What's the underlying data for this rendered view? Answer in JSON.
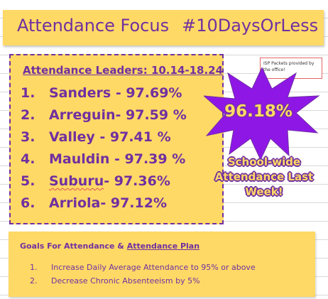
{
  "title": {
    "left": "Attendance Focus",
    "right": "#10DaysOrLess"
  },
  "leaders": {
    "heading": "Attendance Leaders: 10.14-18.24",
    "items": [
      {
        "num": "1.",
        "text": "Sanders - 97.69%"
      },
      {
        "num": "2.",
        "text": "Arreguin- 97.59 %"
      },
      {
        "num": "3.",
        "text": "Valley - 97.41 %"
      },
      {
        "num": "4.",
        "text": "Mauldin - 97.39 %"
      },
      {
        "num": "5.",
        "text_name": "Suburu",
        "text_rest": "- 97.36%"
      },
      {
        "num": "6.",
        "text": "Arriola- 97.12%"
      }
    ]
  },
  "note": {
    "text": "ISP Packets provided by the office!"
  },
  "school_wide": {
    "rate": "96.18%",
    "line1": "School-wide",
    "line2": "Attendance Last",
    "line3": "Week!"
  },
  "goals": {
    "heading_prefix": "Goals For Attendance & ",
    "heading_link": "Attendance Plan",
    "items": [
      {
        "num": "1.",
        "text": "Increase Daily Average Attendance to 95% or above"
      },
      {
        "num": "2.",
        "text": "Decrease Chronic Absenteeism by 5%"
      }
    ]
  },
  "colors": {
    "panel": "#ffd966",
    "accent": "#7030a0",
    "note_border": "#e06666"
  }
}
